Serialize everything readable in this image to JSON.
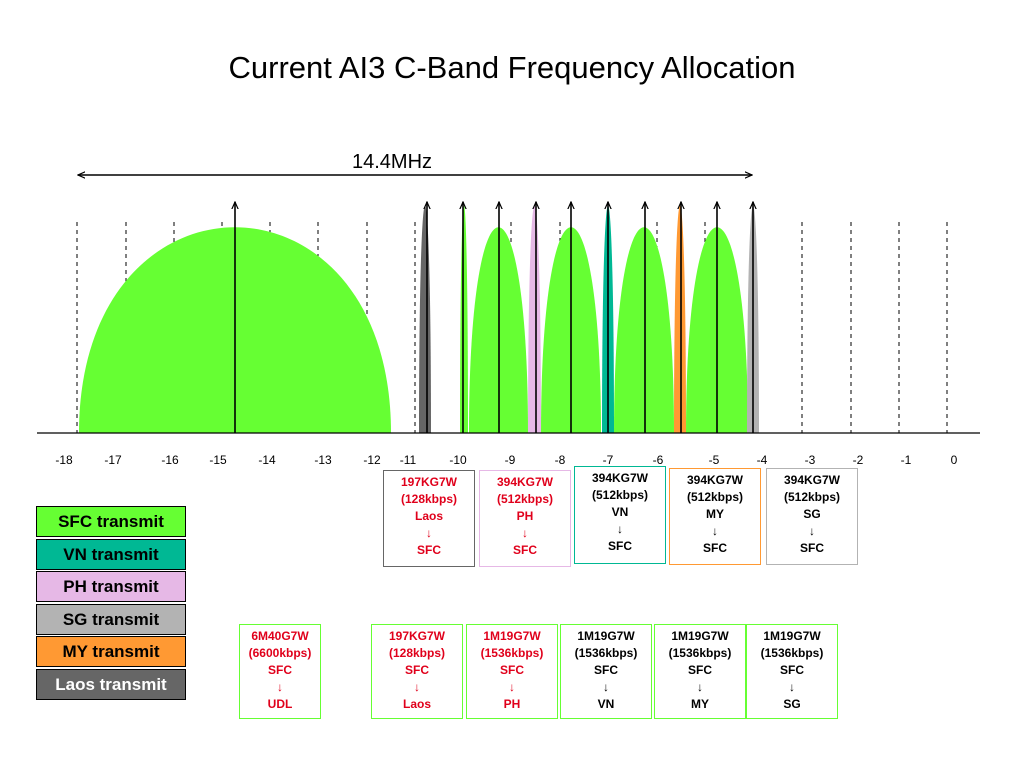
{
  "title": "Current AI3 C-Band Frequency Allocation",
  "bandwidth_label": "14.4MHz",
  "axis_ticks": [
    "-18",
    "-17",
    "-16",
    "-15",
    "-14",
    "-13",
    "-12",
    "-11",
    "-10",
    "-9",
    "-8",
    "-7",
    "-6",
    "-5",
    "-4",
    "-3",
    "-2",
    "-1",
    "0"
  ],
  "colors": {
    "sfc": "#66ff33",
    "vn": "#00b894",
    "ph": "#e6b8e6",
    "sg": "#b3b3b3",
    "my": "#ff9933",
    "laos": "#666666",
    "red_text": "#e0001b"
  },
  "carriers": [
    {
      "name": "SFC 6M40G7W",
      "color": "sfc"
    },
    {
      "name": "Laos return",
      "color": "laos"
    },
    {
      "name": "SFC to Laos",
      "color": "sfc"
    },
    {
      "name": "SFC to PH",
      "color": "sfc"
    },
    {
      "name": "PH return",
      "color": "ph"
    },
    {
      "name": "SFC to VN",
      "color": "sfc"
    },
    {
      "name": "VN return",
      "color": "vn"
    },
    {
      "name": "SFC to MY",
      "color": "sfc"
    },
    {
      "name": "MY return",
      "color": "my"
    },
    {
      "name": "SFC to SG",
      "color": "sfc"
    },
    {
      "name": "SG return",
      "color": "sg"
    }
  ],
  "upper_boxes": [
    {
      "lines": [
        "197KG7W",
        "(128kbps)",
        "Laos",
        "↓",
        "SFC"
      ],
      "text": "red",
      "border": "#666666"
    },
    {
      "lines": [
        "394KG7W",
        "(512kbps)",
        "PH",
        "↓",
        "SFC"
      ],
      "text": "red",
      "border": "#e6b8e6"
    },
    {
      "lines": [
        "394KG7W",
        "(512kbps)",
        "VN",
        "↓",
        "SFC"
      ],
      "text": "black",
      "border": "#00b894"
    },
    {
      "lines": [
        "394KG7W",
        "(512kbps)",
        "MY",
        "↓",
        "SFC"
      ],
      "text": "black",
      "border": "#ff9933"
    },
    {
      "lines": [
        "394KG7W",
        "(512kbps)",
        "SG",
        "↓",
        "SFC"
      ],
      "text": "black",
      "border": "#b3b3b3"
    }
  ],
  "lower_boxes": [
    {
      "lines": [
        "6M40G7W",
        "(6600kbps)",
        "SFC",
        "↓",
        "UDL"
      ],
      "text": "red",
      "border": "#66ff33"
    },
    {
      "lines": [
        "197KG7W",
        "(128kbps)",
        "SFC",
        "↓",
        "Laos"
      ],
      "text": "red",
      "border": "#66ff33"
    },
    {
      "lines": [
        "1M19G7W",
        "(1536kbps)",
        "SFC",
        "↓",
        "PH"
      ],
      "text": "red",
      "border": "#66ff33"
    },
    {
      "lines": [
        "1M19G7W",
        "(1536kbps)",
        "SFC",
        "↓",
        "VN"
      ],
      "text": "black",
      "border": "#66ff33"
    },
    {
      "lines": [
        "1M19G7W",
        "(1536kbps)",
        "SFC",
        "↓",
        "MY"
      ],
      "text": "black",
      "border": "#66ff33"
    },
    {
      "lines": [
        "1M19G7W",
        "(1536kbps)",
        "SFC",
        "↓",
        "SG"
      ],
      "text": "black",
      "border": "#66ff33"
    }
  ],
  "legend": [
    {
      "label": "SFC transmit",
      "color": "#66ff33"
    },
    {
      "label": "VN transmit",
      "color": "#00b894"
    },
    {
      "label": "PH transmit",
      "color": "#e6b8e6"
    },
    {
      "label": "SG transmit",
      "color": "#b3b3b3"
    },
    {
      "label": "MY transmit",
      "color": "#ff9933"
    },
    {
      "label": "Laos transmit",
      "color": "#666666"
    }
  ]
}
